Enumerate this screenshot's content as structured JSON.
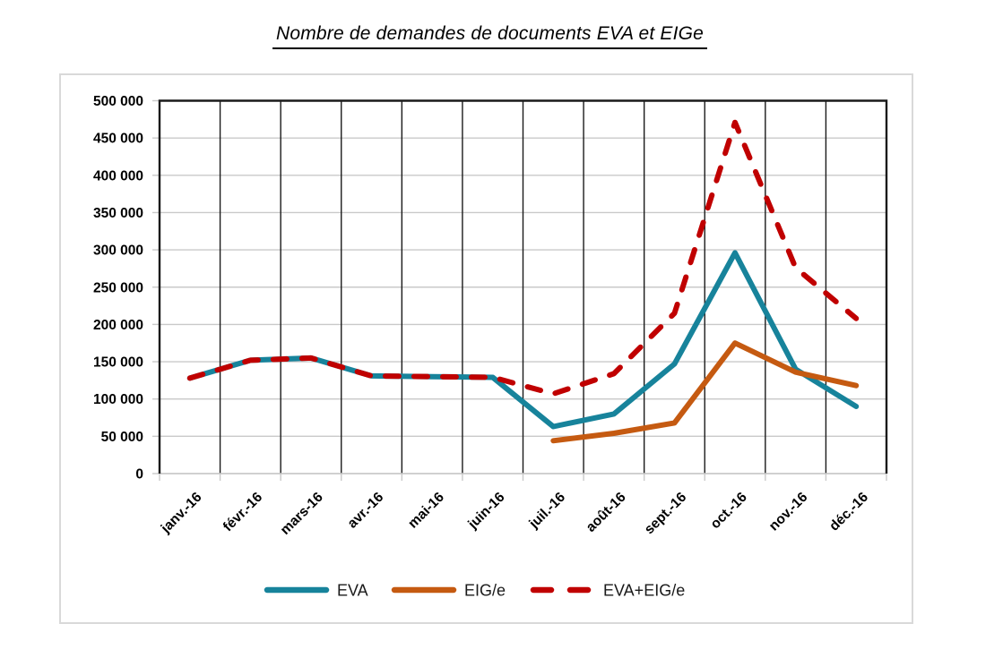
{
  "title": "Nombre de demandes de documents EVA et EIGe",
  "chart_data": {
    "type": "line",
    "categories": [
      "janv.-16",
      "févr.-16",
      "mars-16",
      "avr.-16",
      "mai-16",
      "juin-16",
      "juil.-16",
      "août-16",
      "sept.-16",
      "oct.-16",
      "nov.-16",
      "déc.-16"
    ],
    "series": [
      {
        "name": "EVA",
        "color": "#17839B",
        "style": "solid",
        "values": [
          128000,
          152000,
          155000,
          131000,
          130000,
          129000,
          63000,
          80000,
          147000,
          296000,
          140000,
          90000
        ]
      },
      {
        "name": "EIG/e",
        "color": "#C55A11",
        "style": "solid",
        "values": [
          null,
          null,
          null,
          null,
          null,
          null,
          44000,
          54000,
          68000,
          175000,
          136000,
          118000
        ]
      },
      {
        "name": "EVA+EIG/e",
        "color": "#C00000",
        "style": "dashed",
        "values": [
          128000,
          152000,
          155000,
          131000,
          130000,
          129000,
          107000,
          134000,
          215000,
          471000,
          276000,
          208000
        ]
      }
    ],
    "ylabel": "",
    "xlabel": "",
    "ylim": [
      0,
      500000
    ],
    "ytick_step": 50000,
    "ytick_labels": [
      "0",
      "50 000",
      "100 000",
      "150 000",
      "200 000",
      "250 000",
      "300 000",
      "350 000",
      "400 000",
      "450 000",
      "500 000"
    ],
    "grid": {
      "vertical_color": "#1a1a1a",
      "horizontal_color": "#c9c9c9"
    },
    "legend_position": "bottom",
    "axis_text_color": "#000000",
    "figure_border_color": "#d9d9d9"
  }
}
